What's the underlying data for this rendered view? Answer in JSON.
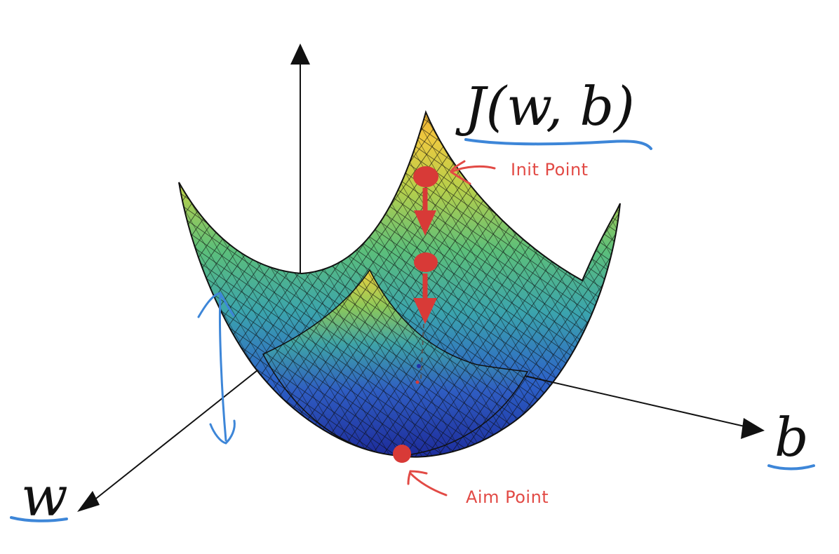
{
  "diagram": {
    "title": "J(w, b)",
    "axis_labels": {
      "w": "w",
      "b": "b"
    },
    "annotations": {
      "init": "Init Point",
      "aim": "Aim Point"
    }
  },
  "colors": {
    "marker": "#d83a37",
    "annotation": "#e24a45",
    "underline": "#3d86d8",
    "axis": "#111111",
    "surface_low": "#2233a8",
    "surface_mid": "#3aa6a8",
    "surface_high": "#e9d94a",
    "mesh": "#111111"
  },
  "icons": [
    "arrow-head-icon",
    "down-arrow-icon",
    "pointer-arrow-icon"
  ]
}
